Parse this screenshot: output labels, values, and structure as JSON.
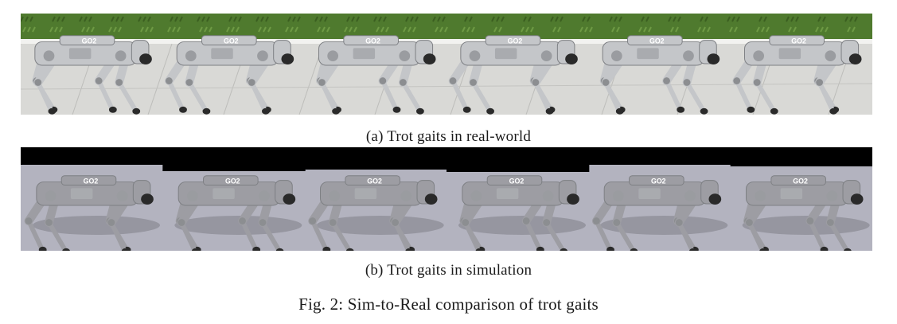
{
  "panels": [
    {
      "caption": "(a) Trot gaits in real-world",
      "scene": "real-world",
      "frames": 6
    },
    {
      "caption": "(b) Trot gaits in simulation",
      "scene": "simulation",
      "frames": 6
    }
  ],
  "figure_caption": "Fig. 2: Sim-to-Real comparison of trot gaits",
  "robot_body_label": "GO2",
  "colors": {
    "grass": "#4f7a2e",
    "pavement": "#d9d9d6",
    "robot_real": "#c4c6c9",
    "sim_floor": "#b3b3bf",
    "sim_sky": "#000000",
    "sim_robot": "#9d9da3"
  }
}
